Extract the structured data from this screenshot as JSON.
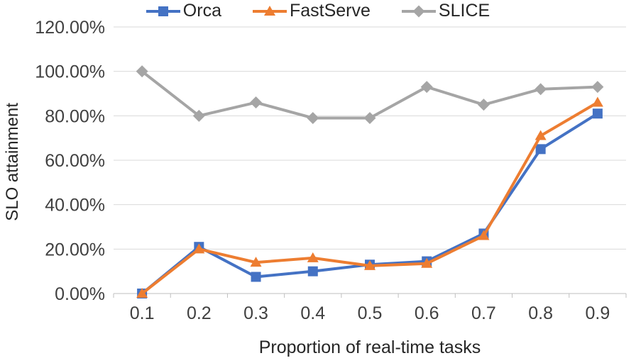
{
  "chart_data": {
    "type": "line",
    "title": "",
    "xlabel": "Proportion of real-time tasks",
    "ylabel": "SLO attainment",
    "categories": [
      "0.1",
      "0.2",
      "0.3",
      "0.4",
      "0.5",
      "0.6",
      "0.7",
      "0.8",
      "0.9"
    ],
    "y_ticks": [
      0,
      20,
      40,
      60,
      80,
      100,
      120
    ],
    "y_tick_labels": [
      "0.00%",
      "20.00%",
      "40.00%",
      "60.00%",
      "80.00%",
      "100.00%",
      "120.00%"
    ],
    "ylim": [
      0,
      120
    ],
    "grid": true,
    "legend_position": "top",
    "colors": {
      "gridline": "#D9D9D9",
      "axis_line": "#BFBFBF",
      "tick_text": "#404040"
    },
    "series": [
      {
        "name": "Orca",
        "color": "#4472C4",
        "marker": "square",
        "values": [
          0,
          21,
          7.5,
          10,
          13,
          14.5,
          27,
          65,
          81
        ]
      },
      {
        "name": "FastServe",
        "color": "#ED7D31",
        "marker": "triangle",
        "values": [
          0,
          20,
          14,
          16,
          12.5,
          13.5,
          26,
          71,
          86
        ]
      },
      {
        "name": "SLICE",
        "color": "#A5A5A5",
        "marker": "diamond",
        "values": [
          100,
          80,
          86,
          79,
          79,
          93,
          85,
          92,
          93
        ]
      }
    ]
  }
}
